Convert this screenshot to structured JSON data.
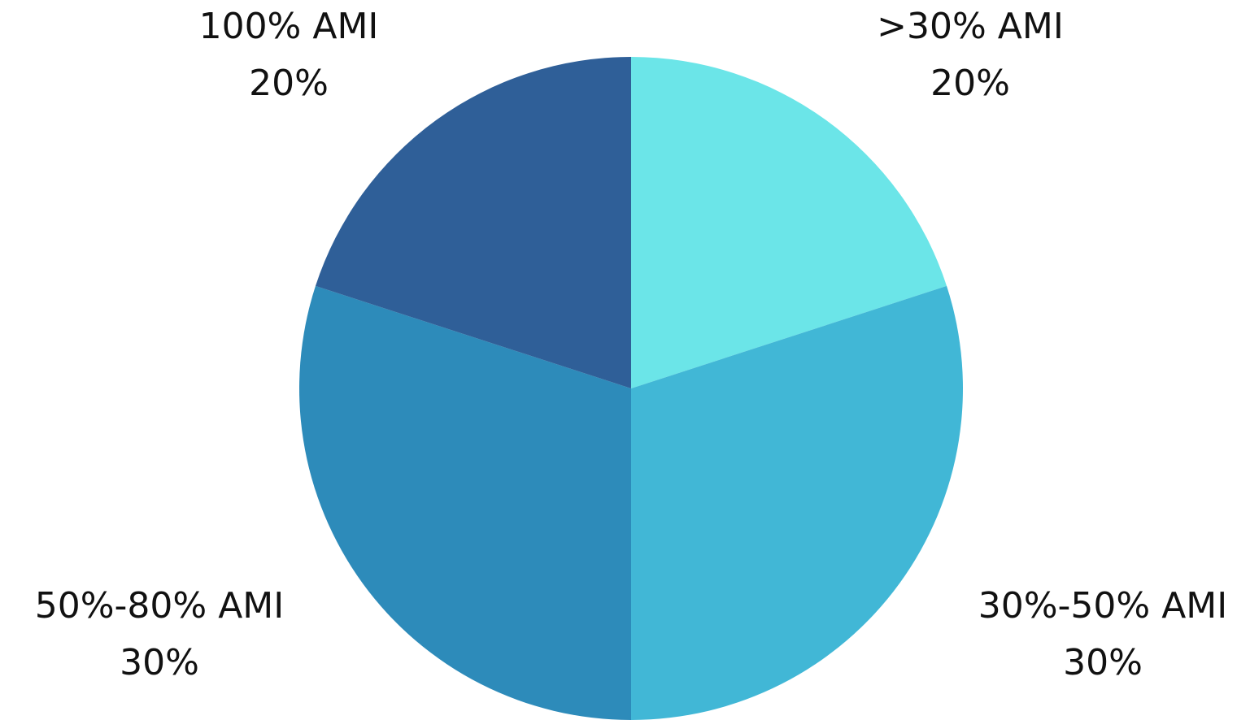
{
  "chart_data": {
    "type": "pie",
    "title": "",
    "start_angle_deg": 0,
    "direction": "clockwise",
    "slices": [
      {
        "label": ">30% AMI",
        "value": 20,
        "value_label": "20%",
        "color": "#6be5e8"
      },
      {
        "label": "30%-50% AMI",
        "value": 30,
        "value_label": "30%",
        "color": "#41b7d6"
      },
      {
        "label": "50%-80% AMI",
        "value": 30,
        "value_label": "30%",
        "color": "#2d8bba"
      },
      {
        "label": "100% AMI",
        "value": 20,
        "value_label": "20%",
        "color": "#2f5f98"
      }
    ]
  }
}
